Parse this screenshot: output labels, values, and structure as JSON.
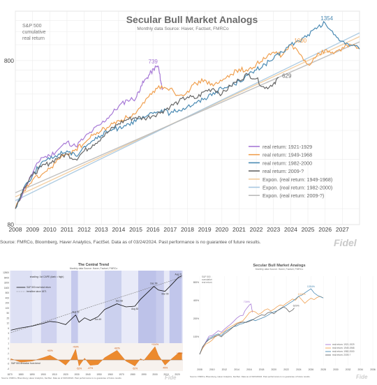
{
  "chart_data": [
    {
      "type": "line",
      "title": "Secular Bull Market Analogs",
      "subtitle": "Monthly data   Source: Haver, Factset, FMRCo",
      "ylabel": "S&P 500 cumulative real return",
      "ylabel_lines": [
        "S&P 500",
        "cumulative",
        "real return"
      ],
      "y_scale": "log",
      "ylim": [
        80,
        1600
      ],
      "yticks": [
        80,
        800
      ],
      "xlim": [
        2008,
        2028
      ],
      "xticks": [
        "2008",
        "2009",
        "2010",
        "2011",
        "2012",
        "2013",
        "2014",
        "2015",
        "2016",
        "2017",
        "2018",
        "2019",
        "2020",
        "2021",
        "2022",
        "2023",
        "2024",
        "2025",
        "2026",
        "2027"
      ],
      "grid": true,
      "legend_position": "lower-right",
      "series": [
        {
          "name": "real return: 1921-1929",
          "color": "#a779d6",
          "end_label": "739",
          "points": [
            [
              2008.0,
              100
            ],
            [
              2008.5,
              130
            ],
            [
              2009.0,
              165
            ],
            [
              2009.5,
              205
            ],
            [
              2010.0,
              210
            ],
            [
              2010.5,
              230
            ],
            [
              2011.0,
              255
            ],
            [
              2011.5,
              240
            ],
            [
              2012.0,
              270
            ],
            [
              2012.5,
              300
            ],
            [
              2013.0,
              330
            ],
            [
              2013.5,
              370
            ],
            [
              2014.0,
              420
            ],
            [
              2014.5,
              460
            ],
            [
              2015.0,
              470
            ],
            [
              2015.3,
              560
            ],
            [
              2015.6,
              620
            ],
            [
              2015.9,
              680
            ],
            [
              2016.1,
              720
            ],
            [
              2016.3,
              739
            ],
            [
              2016.45,
              600
            ],
            [
              2016.55,
              530
            ]
          ]
        },
        {
          "name": "real return: 1949-1968",
          "color": "#f0a050",
          "end_label": "1000",
          "points": [
            [
              2008.0,
              100
            ],
            [
              2008.5,
              128
            ],
            [
              2009.0,
              150
            ],
            [
              2009.5,
              160
            ],
            [
              2010.0,
              175
            ],
            [
              2010.5,
              200
            ],
            [
              2011.0,
              215
            ],
            [
              2011.5,
              230
            ],
            [
              2012.0,
              250
            ],
            [
              2012.5,
              280
            ],
            [
              2013.0,
              300
            ],
            [
              2013.5,
              320
            ],
            [
              2014.0,
              345
            ],
            [
              2014.5,
              360
            ],
            [
              2015.0,
              380
            ],
            [
              2015.5,
              440
            ],
            [
              2016.0,
              520
            ],
            [
              2016.5,
              560
            ],
            [
              2017.0,
              540
            ],
            [
              2017.5,
              490
            ],
            [
              2018.0,
              520
            ],
            [
              2018.5,
              580
            ],
            [
              2019.0,
              610
            ],
            [
              2019.5,
              560
            ],
            [
              2020.0,
              600
            ],
            [
              2020.5,
              660
            ],
            [
              2021.0,
              710
            ],
            [
              2021.5,
              690
            ],
            [
              2022.0,
              760
            ],
            [
              2022.5,
              820
            ],
            [
              2023.0,
              900
            ],
            [
              2023.5,
              860
            ],
            [
              2024.0,
              1000
            ],
            [
              2024.5,
              880
            ],
            [
              2025.0,
              760
            ],
            [
              2025.5,
              850
            ],
            [
              2026.0,
              930
            ],
            [
              2026.5,
              880
            ],
            [
              2027.0,
              960
            ],
            [
              2027.5,
              1000
            ],
            [
              2028.0,
              940
            ]
          ]
        },
        {
          "name": "real return: 1982-2000",
          "color": "#4a8ab3",
          "end_label": "1354",
          "points": [
            [
              2008.0,
              100
            ],
            [
              2008.5,
              135
            ],
            [
              2009.0,
              160
            ],
            [
              2009.5,
              190
            ],
            [
              2010.0,
              200
            ],
            [
              2010.5,
              215
            ],
            [
              2011.0,
              225
            ],
            [
              2011.5,
              210
            ],
            [
              2012.0,
              240
            ],
            [
              2012.5,
              260
            ],
            [
              2013.0,
              280
            ],
            [
              2013.5,
              300
            ],
            [
              2014.0,
              310
            ],
            [
              2014.5,
              330
            ],
            [
              2015.0,
              340
            ],
            [
              2015.5,
              360
            ],
            [
              2016.0,
              380
            ],
            [
              2016.5,
              400
            ],
            [
              2017.0,
              380
            ],
            [
              2017.5,
              400
            ],
            [
              2018.0,
              420
            ],
            [
              2018.5,
              440
            ],
            [
              2019.0,
              470
            ],
            [
              2019.5,
              510
            ],
            [
              2020.0,
              540
            ],
            [
              2020.5,
              560
            ],
            [
              2021.0,
              600
            ],
            [
              2021.5,
              650
            ],
            [
              2022.0,
              700
            ],
            [
              2022.5,
              760
            ],
            [
              2023.0,
              820
            ],
            [
              2023.5,
              900
            ],
            [
              2024.0,
              1000
            ],
            [
              2024.5,
              1050
            ],
            [
              2025.0,
              1150
            ],
            [
              2025.5,
              1250
            ],
            [
              2026.0,
              1354
            ],
            [
              2026.5,
              1150
            ],
            [
              2027.0,
              1050
            ],
            [
              2027.5,
              990
            ],
            [
              2028.0,
              940
            ]
          ]
        },
        {
          "name": "real return: 2009-?",
          "color": "#666666",
          "end_label": "629",
          "points": [
            [
              2008.0,
              100
            ],
            [
              2008.5,
              135
            ],
            [
              2009.0,
              160
            ],
            [
              2009.5,
              180
            ],
            [
              2010.0,
              190
            ],
            [
              2010.5,
              205
            ],
            [
              2011.0,
              215
            ],
            [
              2011.5,
              200
            ],
            [
              2012.0,
              225
            ],
            [
              2012.5,
              245
            ],
            [
              2013.0,
              270
            ],
            [
              2013.5,
              300
            ],
            [
              2014.0,
              330
            ],
            [
              2014.5,
              350
            ],
            [
              2015.0,
              360
            ],
            [
              2015.5,
              355
            ],
            [
              2016.0,
              370
            ],
            [
              2016.5,
              390
            ],
            [
              2017.0,
              420
            ],
            [
              2017.5,
              450
            ],
            [
              2018.0,
              480
            ],
            [
              2018.5,
              470
            ],
            [
              2019.0,
              520
            ],
            [
              2019.5,
              540
            ],
            [
              2020.0,
              500
            ],
            [
              2020.5,
              560
            ],
            [
              2021.0,
              610
            ],
            [
              2021.5,
              660
            ],
            [
              2022.0,
              620
            ],
            [
              2022.5,
              540
            ],
            [
              2023.0,
              580
            ],
            [
              2023.3,
              629
            ]
          ]
        },
        {
          "name": "Expon. (real return: 1949-1968)",
          "color": "#f2cc9c",
          "trend": [
            [
              2008,
              118
            ],
            [
              2028,
              1120
            ]
          ]
        },
        {
          "name": "Expon. (real return: 1982-2000)",
          "color": "#a8c8e0",
          "trend": [
            [
              2008,
              112
            ],
            [
              2028,
              1180
            ]
          ]
        },
        {
          "name": "Expon. (real return: 2009-?)",
          "color": "#bbbbbb",
          "trend": [
            [
              2008,
              125
            ],
            [
              2028,
              1040
            ]
          ]
        }
      ],
      "source": "Source: FMRCo, Bloomberg, Haver Analytics, FactSet. Data as of 03/24/2024. Past performance is no guarantee of future results.",
      "logo_text": "Fidel"
    },
    {
      "type": "line",
      "title": "The Central Trend",
      "subtitle": "Monthly data   Source: Haver, Factset, FMRCo",
      "ylabel_top": "S&P 500",
      "legend": [
        "S&P 500 real total return",
        "trendline since 1871"
      ],
      "note": "shading: 1st CAPE (dark = high)",
      "lower_label": "S&P 500 deviation from trend",
      "yticks": [
        "12800",
        "6400",
        "3200",
        "1600",
        "800",
        "400",
        "200",
        "100",
        "50",
        "25",
        "12",
        "6",
        "3",
        "2",
        "1",
        "0",
        "-1",
        "-2",
        "-3",
        "-4"
      ],
      "xticks": [
        "1870",
        "1880",
        "1890",
        "1900",
        "1910",
        "1920",
        "1930",
        "1940",
        "1950",
        "1960",
        "1970",
        "1980",
        "1990",
        "2000",
        "2010",
        "2020"
      ],
      "annotations": [
        "+60%",
        "+93%",
        "+82%",
        "+114%",
        "-52%",
        "-47%",
        "-52%",
        "-45%",
        "+28%",
        "Dec 99",
        "Aug 29",
        "Jun 49",
        "Dec 68",
        "Feb 82",
        "Aug 82",
        "Mar 09",
        "Aug 21",
        "Jan 66"
      ],
      "price_series": [
        [
          1871,
          3
        ],
        [
          1880,
          4
        ],
        [
          1890,
          5
        ],
        [
          1900,
          7
        ],
        [
          1906,
          9
        ],
        [
          1913,
          8
        ],
        [
          1920,
          6
        ],
        [
          1929,
          20
        ],
        [
          1932,
          8
        ],
        [
          1937,
          14
        ],
        [
          1942,
          10
        ],
        [
          1949,
          16
        ],
        [
          1955,
          40
        ],
        [
          1966,
          80
        ],
        [
          1974,
          55
        ],
        [
          1982,
          60
        ],
        [
          1987,
          140
        ],
        [
          1999,
          700
        ],
        [
          2003,
          450
        ],
        [
          2009,
          380
        ],
        [
          2015,
          900
        ],
        [
          2021,
          2200
        ],
        [
          2024,
          2600
        ]
      ],
      "deviation_series": [
        [
          1871,
          10
        ],
        [
          1880,
          -20
        ],
        [
          1890,
          -10
        ],
        [
          1900,
          20
        ],
        [
          1906,
          40
        ],
        [
          1915,
          -10
        ],
        [
          1920,
          -45
        ],
        [
          1925,
          10
        ],
        [
          1929,
          93
        ],
        [
          1932,
          -52
        ],
        [
          1937,
          15
        ],
        [
          1942,
          -47
        ],
        [
          1949,
          -40
        ],
        [
          1955,
          20
        ],
        [
          1966,
          82
        ],
        [
          1974,
          -10
        ],
        [
          1982,
          -52
        ],
        [
          1987,
          10
        ],
        [
          1990,
          -5
        ],
        [
          2000,
          114
        ],
        [
          2003,
          40
        ],
        [
          2009,
          -45
        ],
        [
          2015,
          10
        ],
        [
          2021,
          60
        ],
        [
          2024,
          60
        ]
      ],
      "source": "Source: FMRCo, Bloomberg, Haver Analytics, FactSet. Data as of 03/24/2024. Past performance is no guarantee of future results.",
      "logo_text": "Fide"
    },
    {
      "type": "line",
      "title": "Secular Bull Market Analogs",
      "subtitle": "Monthly data   Source: Haver, Factset, FMRCo",
      "ylabel_lines": [
        "S&P 500",
        "cumulative",
        "real return"
      ],
      "yticks": [
        "800%",
        "400%",
        "200%",
        "100%"
      ],
      "xticks": [
        "2008",
        "2010",
        "2012",
        "2014",
        "2016",
        "2018",
        "2020",
        "2022",
        "2024",
        "2026",
        "2028",
        "2030",
        "2032",
        "2034",
        "2036"
      ],
      "end_labels": [
        "739%",
        "1354%",
        "1000%",
        "629%"
      ],
      "legend": [
        "real return: 1921-1929",
        "real return: 1949-1968",
        "real return: 1982-2000",
        "real return: 2009-?"
      ],
      "source": "Source: FMRCo, Bloomberg, Haver Analytics, FactSet. Data as of 03/24/2024. Past performance is no guarantee of future results.",
      "logo_text": "Fide"
    }
  ]
}
